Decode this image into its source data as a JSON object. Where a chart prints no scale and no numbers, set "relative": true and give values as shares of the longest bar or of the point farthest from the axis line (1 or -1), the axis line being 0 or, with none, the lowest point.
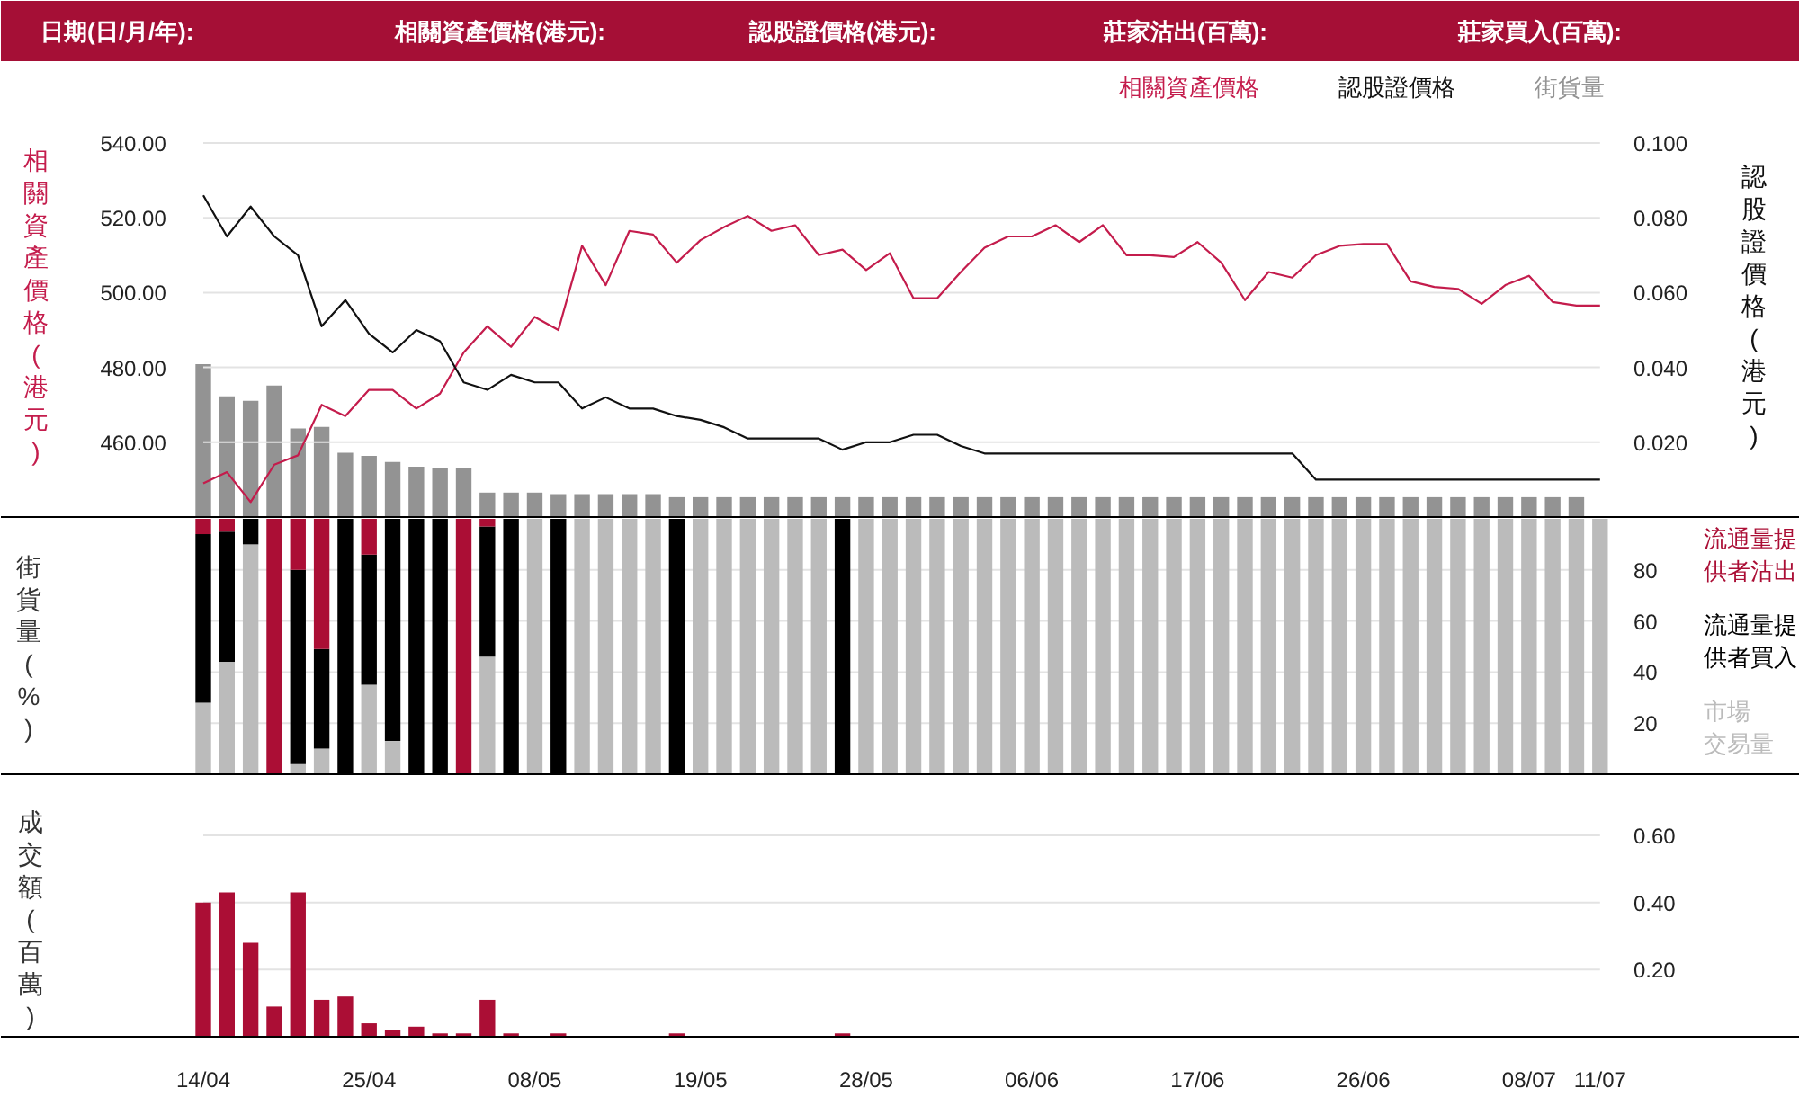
{
  "chart_data": [
    {
      "type": "other",
      "annotations": [
        "日期(日/月/年):",
        "相關資產價格(港元):",
        "認股證價格(港元):",
        "莊家沽出(百萬):",
        "莊家買入(百萬):"
      ]
    },
    {
      "type": "line",
      "categories": [
        null,
        null,
        null,
        null,
        null,
        null,
        null,
        null,
        null,
        null,
        null,
        null,
        null,
        null,
        null,
        null,
        null,
        null,
        null,
        null,
        null,
        null,
        null,
        null,
        null,
        null,
        null,
        null,
        null,
        null,
        null,
        null,
        null,
        null,
        null,
        null,
        null,
        null,
        null,
        null,
        null,
        null,
        null,
        null,
        null,
        null,
        null,
        null,
        null,
        null,
        null,
        null,
        null,
        null,
        null,
        null,
        null,
        null,
        null,
        null
      ],
      "ylabel": "相關資產價格(港元)",
      "y2label": "認股證價格(港元)",
      "ylim": [
        440,
        540
      ],
      "yticks": [
        {
          "value": 460,
          "label": "460.00"
        },
        {
          "value": 480,
          "label": "480.00"
        },
        {
          "value": 500,
          "label": "500.00"
        },
        {
          "value": 520,
          "label": "520.00"
        },
        {
          "value": 540,
          "label": "540.00"
        }
      ],
      "y2lim": [
        0,
        0.1
      ],
      "y2ticks": [
        {
          "value": 0.02,
          "label": "0.020"
        },
        {
          "value": 0.04,
          "label": "0.040"
        },
        {
          "value": 0.06,
          "label": "0.060"
        },
        {
          "value": 0.08,
          "label": "0.080"
        },
        {
          "value": 0.1,
          "label": "0.100"
        }
      ],
      "grid": "y",
      "legend": "top right",
      "tick_labels": "y",
      "series": [
        {
          "name": "相關資產價格",
          "color": "#c41c4c",
          "values": [
            449,
            452,
            444,
            454,
            456.5,
            470,
            467,
            474,
            474,
            469,
            473,
            484,
            491,
            485.5,
            493.5,
            490,
            512.5,
            502,
            516.5,
            515.5,
            508,
            514,
            517.5,
            520.5,
            516.5,
            518,
            510,
            511.5,
            506,
            510.5,
            498.5,
            498.5,
            505.5,
            512,
            515,
            515,
            518,
            513.5,
            518,
            510,
            510,
            509.5,
            513.5,
            508,
            498,
            505.5,
            504,
            510,
            512.5,
            513,
            513,
            503,
            501.5,
            501,
            497,
            502,
            504.5,
            497.5,
            496.5,
            496.5
          ]
        },
        {
          "name": "認股證價格",
          "color": "#111111",
          "axis": "y2",
          "values": [
            0.086,
            0.075,
            0.083,
            0.075,
            0.07,
            0.051,
            0.058,
            0.049,
            0.044,
            0.05,
            0.047,
            0.036,
            0.034,
            0.038,
            0.036,
            0.036,
            0.029,
            0.032,
            0.029,
            0.029,
            0.027,
            0.026,
            0.024,
            0.021,
            0.021,
            0.021,
            0.021,
            0.018,
            0.02,
            0.02,
            0.022,
            0.022,
            0.019,
            0.017,
            0.017,
            0.017,
            0.017,
            0.017,
            0.017,
            0.017,
            0.017,
            0.017,
            0.017,
            0.017,
            0.017,
            0.017,
            0.017,
            0.01,
            0.01,
            0.01,
            0.01,
            0.01,
            0.01,
            0.01,
            0.01,
            0.01,
            0.01,
            0.01,
            0.01,
            0.01
          ]
        }
      ]
    },
    {
      "type": "bar",
      "relative": true,
      "categories": [
        null,
        null,
        null,
        null,
        null,
        null,
        null,
        null,
        null,
        null,
        null,
        null,
        null,
        null,
        null,
        null,
        null,
        null,
        null,
        null,
        null,
        null,
        null,
        null,
        null,
        null,
        null,
        null,
        null,
        null,
        null,
        null,
        null,
        null,
        null,
        null,
        null,
        null,
        null,
        null,
        null,
        null,
        null,
        null,
        null,
        null,
        null,
        null,
        null,
        null,
        null,
        null,
        null,
        null,
        null,
        null,
        null,
        null,
        null,
        null
      ],
      "legend": "top right",
      "tick_labels": false,
      "series": [
        {
          "name": "街貨量",
          "color": "#939393",
          "values": [
            1,
            0.79,
            0.76,
            0.86,
            0.58,
            0.59,
            0.42,
            0.4,
            0.36,
            0.33,
            0.32,
            0.32,
            0.16,
            0.16,
            0.16,
            0.15,
            0.15,
            0.15,
            0.15,
            0.15,
            0.13,
            0.13,
            0.13,
            0.13,
            0.13,
            0.13,
            0.13,
            0.13,
            0.13,
            0.13,
            0.13,
            0.13,
            0.13,
            0.13,
            0.13,
            0.13,
            0.13,
            0.13,
            0.13,
            0.13,
            0.13,
            0.13,
            0.13,
            0.13,
            0.13,
            0.13,
            0.13,
            0.13,
            0.13,
            0.13,
            0.13,
            0.13,
            0.13,
            0.13,
            0.13,
            0.13,
            0.13,
            0.13,
            0.13,
            null
          ]
        }
      ]
    },
    {
      "type": "bar",
      "stacked": true,
      "categories": [
        null,
        null,
        null,
        null,
        null,
        null,
        null,
        null,
        null,
        null,
        null,
        null,
        null,
        null,
        null,
        null,
        null,
        null,
        null,
        null,
        null,
        null,
        null,
        null,
        null,
        null,
        null,
        null,
        null,
        null,
        null,
        null,
        null,
        null,
        null,
        null,
        null,
        null,
        null,
        null,
        null,
        null,
        null,
        null,
        null,
        null,
        null,
        null,
        null,
        null,
        null,
        null,
        null,
        null,
        null,
        null,
        null,
        null,
        null,
        null
      ],
      "ylabel": "街貨量(%)",
      "ylim": [
        0,
        100
      ],
      "yticks": [
        20,
        40,
        60,
        80
      ],
      "grid": "y",
      "legend": "right",
      "tick_labels": "y",
      "series": [
        {
          "name": "市場交易量",
          "color": "#bbbbbb",
          "values": [
            28,
            44,
            90,
            0,
            4,
            10,
            0,
            35,
            13,
            0,
            0,
            0,
            46,
            0,
            100,
            0,
            100,
            100,
            100,
            100,
            0,
            100,
            100,
            100,
            100,
            100,
            100,
            0,
            100,
            100,
            100,
            100,
            100,
            100,
            100,
            100,
            100,
            100,
            100,
            100,
            100,
            100,
            100,
            100,
            100,
            100,
            100,
            100,
            100,
            100,
            100,
            100,
            100,
            100,
            100,
            100,
            100,
            100,
            100,
            100
          ]
        },
        {
          "name": "流通量提供者買入",
          "color": "#000000",
          "values": [
            66,
            51,
            10,
            0,
            76,
            39,
            100,
            51,
            87,
            100,
            100,
            0,
            51,
            100,
            0,
            100,
            0,
            0,
            0,
            0,
            100,
            0,
            0,
            0,
            0,
            0,
            0,
            100,
            0,
            0,
            0,
            0,
            0,
            0,
            0,
            0,
            0,
            0,
            0,
            0,
            0,
            0,
            0,
            0,
            0,
            0,
            0,
            0,
            0,
            0,
            0,
            0,
            0,
            0,
            0,
            0,
            0,
            0,
            0,
            0
          ]
        },
        {
          "name": "流通量提供者沽出",
          "color": "#ab0e35",
          "values": [
            6,
            5,
            0,
            100,
            20,
            51,
            0,
            14,
            0,
            0,
            0,
            100,
            3,
            0,
            0,
            0,
            0,
            0,
            0,
            0,
            0,
            0,
            0,
            0,
            0,
            0,
            0,
            0,
            0,
            0,
            0,
            0,
            0,
            0,
            0,
            0,
            0,
            0,
            0,
            0,
            0,
            0,
            0,
            0,
            0,
            0,
            0,
            0,
            0,
            0,
            0,
            0,
            0,
            0,
            0,
            0,
            0,
            0,
            0,
            0
          ]
        }
      ]
    },
    {
      "type": "bar",
      "categories": [
        "14/04",
        null,
        null,
        null,
        null,
        null,
        null,
        "25/04",
        null,
        null,
        null,
        null,
        null,
        null,
        "08/05",
        null,
        null,
        null,
        null,
        null,
        null,
        "19/05",
        null,
        null,
        null,
        null,
        null,
        null,
        "28/05",
        null,
        null,
        null,
        null,
        null,
        null,
        "06/06",
        null,
        null,
        null,
        null,
        null,
        null,
        "17/06",
        null,
        null,
        null,
        null,
        null,
        null,
        "26/06",
        null,
        null,
        null,
        null,
        null,
        null,
        "08/07",
        null,
        null,
        "11/07"
      ],
      "ylabel": "成交額(百萬)",
      "ylim": [
        0,
        0.6
      ],
      "yticks": [
        {
          "value": 0.2,
          "label": "0.20"
        },
        {
          "value": 0.4,
          "label": "0.40"
        },
        {
          "value": 0.6,
          "label": "0.60"
        }
      ],
      "grid": "y",
      "color": "#ab0e35",
      "values": [
        0.4,
        0.43,
        0.28,
        0.09,
        0.43,
        0.11,
        0.12,
        0.04,
        0.02,
        0.03,
        0.01,
        0.01,
        0.11,
        0.01,
        0,
        0.01,
        0,
        0,
        0,
        0,
        0.01,
        0,
        0,
        0,
        0,
        0,
        0,
        0.01,
        0,
        0,
        0,
        0,
        0,
        0,
        0,
        0,
        0,
        0,
        0,
        0,
        0,
        0,
        0,
        0,
        0,
        0,
        0,
        0,
        0,
        0,
        0,
        0,
        0,
        0,
        0,
        0,
        0,
        0,
        0,
        0
      ]
    }
  ]
}
